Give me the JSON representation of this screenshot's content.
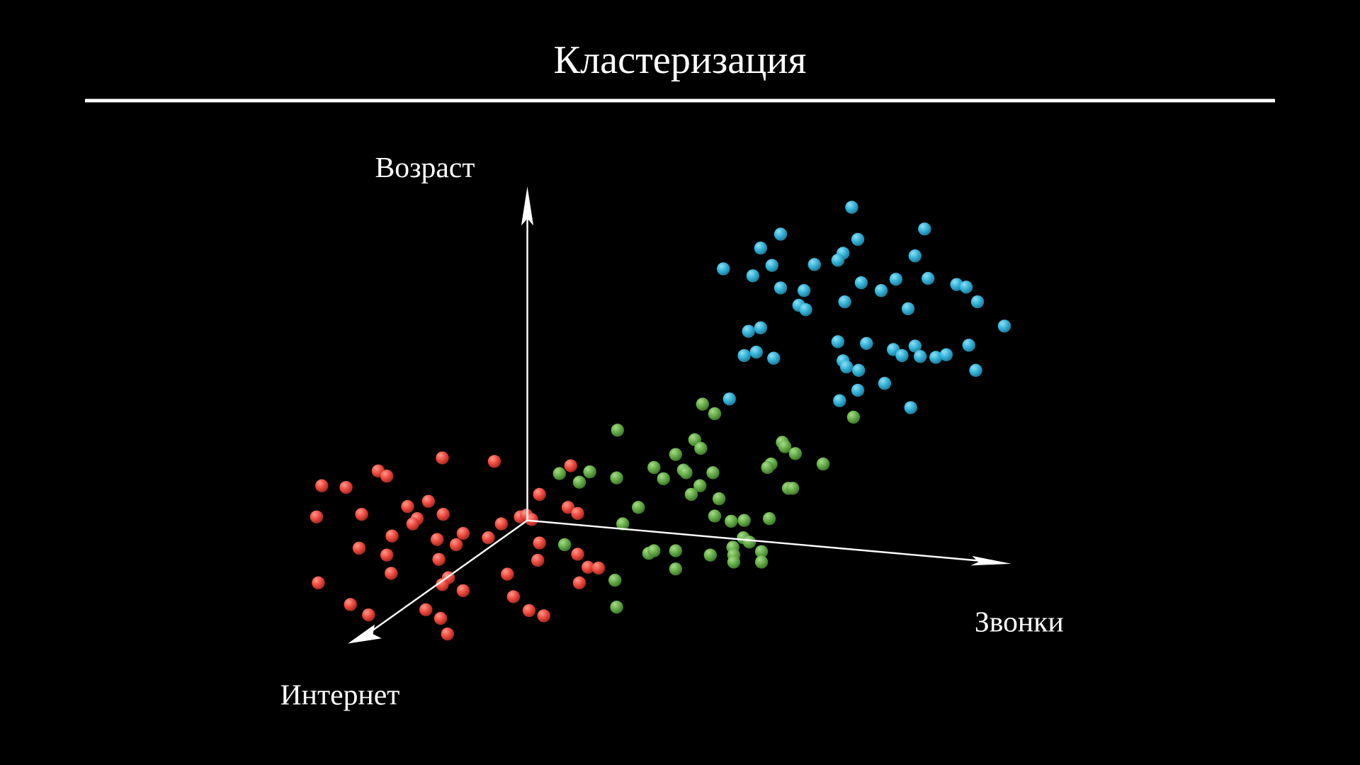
{
  "title": "Кластеризация",
  "axes": {
    "vertical": "Возраст",
    "horizontal": "Звонки",
    "depth": "Интернет"
  }
}
